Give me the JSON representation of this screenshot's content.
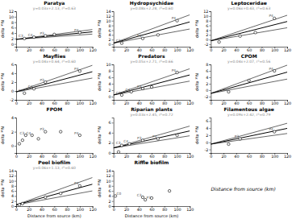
{
  "chart_data": [
    {
      "type": "scatter",
      "title": "Paratya",
      "annotations": [
        "y=0.03x+2.13, r²=0.63"
      ],
      "ylabel": "delta ¹⁵N",
      "xlim": [
        0,
        120
      ],
      "xticks": [
        0,
        20,
        40,
        60,
        80,
        100,
        120
      ],
      "ylim": [
        -1,
        12
      ],
      "yticks": [
        0,
        2,
        4,
        6,
        8,
        10,
        12
      ],
      "series": [
        {
          "type": "scatter",
          "color": "#000000",
          "x": [
            13,
            28,
            46,
            60,
            100
          ],
          "values": [
            2.0,
            2.5,
            3.0,
            3.5,
            4.2
          ],
          "point_labels": [
            "C3",
            "C4",
            "P3",
            null,
            "P4"
          ]
        },
        {
          "type": "line",
          "color": "#000000",
          "x": [
            0,
            120
          ],
          "values": [
            1.7,
            4.46
          ]
        },
        {
          "type": "line",
          "color": "#000000",
          "x": [
            0,
            120
          ],
          "values": [
            1.7,
            5.3
          ]
        },
        {
          "type": "line",
          "color": "#000000",
          "x": [
            0,
            120
          ],
          "values": [
            1.7,
            3.62
          ]
        }
      ]
    },
    {
      "type": "scatter",
      "title": "Hydropsychidae",
      "annotations": [
        "y=0.08x+2.28, r²=0.60"
      ],
      "ylabel": "delta ¹⁵N",
      "xlim": [
        0,
        120
      ],
      "xticks": [
        0,
        20,
        40,
        60,
        80,
        100,
        120
      ],
      "ylim": [
        -1,
        14
      ],
      "yticks": [
        0,
        2,
        4,
        6,
        8,
        10,
        12,
        14
      ],
      "series": [
        {
          "type": "scatter",
          "color": "#000000",
          "x": [
            13,
            46,
            70,
            100
          ],
          "values": [
            0.5,
            2.5,
            4.0,
            10.0
          ],
          "point_labels": [
            "C3",
            "P3",
            null,
            "P4"
          ]
        },
        {
          "type": "line",
          "color": "#000000",
          "x": [
            0,
            120
          ],
          "values": [
            0.5,
            9.5
          ]
        },
        {
          "type": "line",
          "color": "#000000",
          "x": [
            0,
            120
          ],
          "values": [
            0.5,
            12.5
          ]
        },
        {
          "type": "line",
          "color": "#000000",
          "x": [
            0,
            120
          ],
          "values": [
            0.5,
            6.5
          ]
        }
      ]
    },
    {
      "type": "scatter",
      "title": "Leptoceridae",
      "annotations": [
        "y=0.06x+0.43, r²=0.63"
      ],
      "ylabel": "delta ¹⁵N",
      "xlim": [
        0,
        120
      ],
      "xticks": [
        0,
        20,
        40,
        60,
        80,
        100,
        120
      ],
      "ylim": [
        -3,
        12
      ],
      "yticks": [
        -2,
        0,
        2,
        4,
        6,
        8,
        10,
        12
      ],
      "series": [
        {
          "type": "scatter",
          "color": "#000000",
          "x": [
            13,
            46,
            70,
            100
          ],
          "values": [
            -1.0,
            1.5,
            3.0,
            9.0
          ],
          "point_labels": [
            null,
            null,
            null,
            "P4"
          ]
        },
        {
          "type": "line",
          "color": "#000000",
          "x": [
            0,
            120
          ],
          "values": [
            -0.5,
            7.66
          ]
        },
        {
          "type": "line",
          "color": "#000000",
          "x": [
            0,
            120
          ],
          "values": [
            -0.5,
            10.3
          ]
        },
        {
          "type": "line",
          "color": "#000000",
          "x": [
            0,
            120
          ],
          "values": [
            -0.5,
            5.02
          ]
        }
      ]
    },
    {
      "type": "scatter",
      "title": "Mayflies",
      "annotations": [
        "y=0.04x+0.64, r²=0.60"
      ],
      "ylabel": "delta ¹⁵N",
      "xlim": [
        0,
        120
      ],
      "xticks": [
        0,
        20,
        40,
        60,
        80,
        100,
        120
      ],
      "ylim": [
        -2,
        6
      ],
      "yticks": [
        -2,
        0,
        2,
        4,
        6
      ],
      "series": [
        {
          "type": "scatter",
          "color": "#000000",
          "x": [
            13,
            28,
            46,
            100
          ],
          "values": [
            -0.5,
            0.5,
            2.0,
            4.5
          ],
          "point_labels": [
            "C3",
            "C4",
            "P3",
            "P4"
          ]
        },
        {
          "type": "line",
          "color": "#000000",
          "x": [
            0,
            120
          ],
          "values": [
            -0.2,
            4.36
          ]
        },
        {
          "type": "line",
          "color": "#000000",
          "x": [
            0,
            120
          ],
          "values": [
            -0.2,
            5.8
          ]
        },
        {
          "type": "line",
          "color": "#000000",
          "x": [
            0,
            120
          ],
          "values": [
            -0.2,
            2.92
          ]
        }
      ]
    },
    {
      "type": "scatter",
      "title": "Predators",
      "annotations": [
        "y=0.05x+2.71, r²=0.66"
      ],
      "ylabel": "delta ¹⁵N",
      "xlim": [
        0,
        120
      ],
      "xticks": [
        0,
        20,
        40,
        60,
        80,
        100,
        120
      ],
      "ylim": [
        -1,
        10
      ],
      "yticks": [
        0,
        2,
        4,
        6,
        8,
        10
      ],
      "series": [
        {
          "type": "scatter",
          "color": "#000000",
          "x": [
            13,
            28,
            46,
            60,
            100
          ],
          "values": [
            0.5,
            1.5,
            2.5,
            3.0,
            7.5
          ],
          "point_labels": [
            "C3",
            "C4",
            "P3",
            null,
            "P4"
          ]
        },
        {
          "type": "line",
          "color": "#000000",
          "x": [
            0,
            120
          ],
          "values": [
            0.5,
            6.74
          ]
        },
        {
          "type": "line",
          "color": "#000000",
          "x": [
            0,
            120
          ],
          "values": [
            0.5,
            8.66
          ]
        },
        {
          "type": "line",
          "color": "#000000",
          "x": [
            0,
            120
          ],
          "values": [
            0.5,
            4.82
          ]
        }
      ]
    },
    {
      "type": "scatter",
      "title": "CPOM",
      "annotations": [
        "y=0.04x+2.07, r²=0.56"
      ],
      "ylabel": "delta ¹⁵N",
      "xlim": [
        0,
        120
      ],
      "xticks": [
        0,
        20,
        40,
        60,
        80,
        100,
        120
      ],
      "ylim": [
        -3,
        8
      ],
      "yticks": [
        -2,
        0,
        2,
        4,
        6,
        8
      ],
      "series": [
        {
          "type": "scatter",
          "color": "#000000",
          "x": [
            28,
            60,
            100
          ],
          "values": [
            -0.5,
            3.0,
            6.0
          ],
          "point_labels": [
            "C4",
            null,
            "P4"
          ]
        },
        {
          "type": "line",
          "color": "#000000",
          "x": [
            0,
            120
          ],
          "values": [
            -1,
            5.6
          ]
        },
        {
          "type": "line",
          "color": "#000000",
          "x": [
            0,
            120
          ],
          "values": [
            -1,
            7.76
          ]
        },
        {
          "type": "line",
          "color": "#000000",
          "x": [
            0,
            120
          ],
          "values": [
            -1,
            3.44
          ]
        }
      ]
    },
    {
      "type": "scatter",
      "title": "FPOM",
      "ylabel": "delta ¹⁵N",
      "xlim": [
        0,
        120
      ],
      "xticks": [
        0,
        20,
        40,
        60,
        80,
        100,
        120
      ],
      "ylim": [
        -1,
        4
      ],
      "yticks": [
        0,
        2,
        4
      ],
      "series": [
        {
          "type": "scatter",
          "color": "#000000",
          "x": [
            5,
            10,
            15,
            25,
            35,
            46,
            70,
            100
          ],
          "values": [
            0.3,
            0.8,
            1.5,
            1.5,
            1.0,
            2.0,
            2.0,
            1.5
          ],
          "point_labels": [
            null,
            null,
            "C3",
            "C4",
            null,
            "P3",
            null,
            "P4"
          ]
        }
      ]
    },
    {
      "type": "scatter",
      "title": "Riparian plants",
      "annotations": [
        "y=0.03x+2.45, r²=0.72"
      ],
      "ylabel": "delta ¹⁵N",
      "xlim": [
        0,
        120
      ],
      "xticks": [
        0,
        20,
        40,
        60,
        80,
        100,
        120
      ],
      "ylim": [
        0,
        7
      ],
      "yticks": [
        0,
        2,
        4,
        6
      ],
      "series": [
        {
          "type": "scatter",
          "color": "#000000",
          "x": [
            8,
            13,
            25,
            46,
            70,
            100
          ],
          "values": [
            0.2,
            1.5,
            1.8,
            2.5,
            2.8,
            3.5
          ],
          "point_labels": [
            null,
            "C3",
            "C4",
            "P3",
            "P4",
            null
          ]
        },
        {
          "type": "line",
          "color": "#000000",
          "x": [
            0,
            120
          ],
          "values": [
            1,
            4.36
          ]
        },
        {
          "type": "line",
          "color": "#000000",
          "x": [
            0,
            120
          ],
          "values": [
            1,
            5.32
          ]
        },
        {
          "type": "line",
          "color": "#000000",
          "x": [
            0,
            120
          ],
          "values": [
            1,
            3.4
          ]
        }
      ]
    },
    {
      "type": "scatter",
      "title": "Filamentous algae",
      "annotations": [
        "y=0.09x+2.42, r²=0.79"
      ],
      "ylabel": "delta ¹⁵N",
      "xlim": [
        0,
        120
      ],
      "xticks": [
        0,
        20,
        40,
        60,
        80,
        100,
        120
      ],
      "ylim": [
        -3,
        7
      ],
      "yticks": [
        -2,
        0,
        2,
        4,
        6
      ],
      "series": [
        {
          "type": "scatter",
          "color": "#000000",
          "x": [
            28,
            46,
            100
          ],
          "values": [
            -0.5,
            1.0,
            3.0
          ],
          "point_labels": [
            null,
            "P3",
            "P4"
          ]
        },
        {
          "type": "line",
          "color": "#000000",
          "x": [
            0,
            120
          ],
          "values": [
            -0.5,
            3.94
          ]
        },
        {
          "type": "line",
          "color": "#000000",
          "x": [
            0,
            120
          ],
          "values": [
            -0.5,
            5.38
          ]
        },
        {
          "type": "line",
          "color": "#000000",
          "x": [
            0,
            120
          ],
          "values": [
            -0.5,
            2.5
          ]
        }
      ]
    },
    {
      "type": "scatter",
      "title": "Pool biofilm",
      "annotations": [
        "y=0.06x+1.13, r²=0.60"
      ],
      "xlabel": "Distance from source (km)",
      "ylabel": "delta ¹⁵N",
      "xlim": [
        0,
        120
      ],
      "xticks": [
        0,
        20,
        40,
        60,
        80,
        100,
        120
      ],
      "ylim": [
        0,
        14
      ],
      "yticks": [
        0,
        2,
        4,
        6,
        8,
        10,
        12,
        14
      ],
      "series": [
        {
          "type": "scatter",
          "color": "#000000",
          "x": [
            5,
            10,
            46,
            70,
            100
          ],
          "values": [
            0.5,
            1.0,
            3.5,
            5.0,
            8.0
          ],
          "point_labels": [
            null,
            null,
            null,
            null,
            "P4"
          ]
        },
        {
          "type": "line",
          "color": "#000000",
          "x": [
            0,
            120
          ],
          "values": [
            0.5,
            8.66
          ]
        },
        {
          "type": "line",
          "color": "#000000",
          "x": [
            0,
            120
          ],
          "values": [
            0.5,
            11.3
          ]
        },
        {
          "type": "line",
          "color": "#000000",
          "x": [
            0,
            120
          ],
          "values": [
            0.5,
            6.02
          ]
        }
      ]
    },
    {
      "type": "scatter",
      "title": "Riffle biofilm",
      "xlabel": "Distance from source (km)",
      "ylabel": "delta ¹⁵N",
      "xlim": [
        0,
        120
      ],
      "xticks": [
        0,
        20,
        40,
        60,
        80,
        100,
        120
      ],
      "ylim": [
        0,
        14
      ],
      "yticks": [
        0,
        2,
        4,
        6,
        8,
        10,
        12,
        14
      ],
      "series": [
        {
          "type": "scatter",
          "color": "#000000",
          "x": [
            3,
            46,
            50,
            60,
            88
          ],
          "values": [
            4.0,
            3.5,
            2.5,
            3.2,
            6.0
          ],
          "point_labels": [
            "C0",
            "C3",
            "P3",
            null,
            null
          ]
        }
      ]
    },
    {
      "type": "text",
      "annotations": [
        "Distance from source (km)"
      ]
    }
  ]
}
